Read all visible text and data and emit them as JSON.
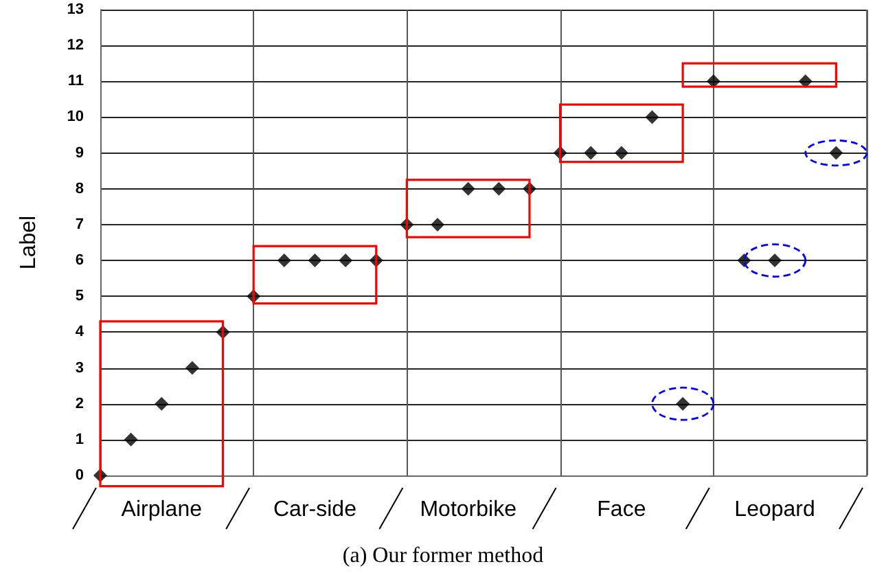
{
  "chart_data": {
    "type": "scatter",
    "ylabel": "Label",
    "annotations": [
      "(a) Our former method"
    ],
    "categories": [
      null,
      null,
      "Airplane",
      null,
      null,
      null,
      null,
      "Car-side",
      null,
      null,
      null,
      null,
      "Motorbike",
      null,
      null,
      null,
      null,
      "Face",
      null,
      null,
      null,
      null,
      "Leopard",
      null,
      null,
      null
    ],
    "series": [
      {
        "color": "#000000",
        "values": [
          0,
          1,
          2,
          3,
          4,
          5,
          6,
          6,
          6,
          6,
          7,
          7,
          8,
          8,
          8,
          9,
          9,
          9,
          10,
          2,
          11,
          6,
          6,
          11,
          9,
          null
        ]
      }
    ],
    "ylim": [
      0,
      13
    ],
    "yticks": [
      0,
      1,
      2,
      3,
      4,
      5,
      6,
      7,
      8,
      9,
      10,
      11,
      12,
      13
    ],
    "grid": true,
    "marker": "diamond"
  }
}
